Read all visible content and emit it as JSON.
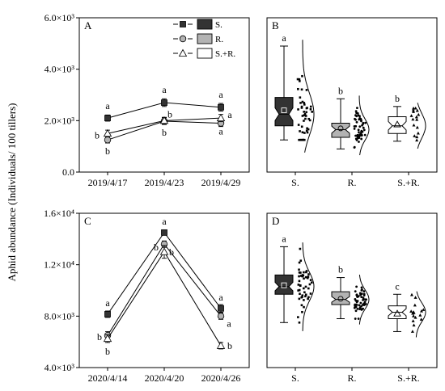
{
  "figure": {
    "ylabel": "Aphid abundance (Individuals/ 100 tillers)"
  },
  "chart_data": [
    {
      "panel": "A",
      "type": "line",
      "categories": [
        "2019/4/17",
        "2019/4/23",
        "2019/4/29"
      ],
      "ylim": [
        0,
        6000
      ],
      "yticks": [
        {
          "value": 0,
          "label": "0.0"
        },
        {
          "value": 2000,
          "label": "2.0×10³"
        },
        {
          "value": 4000,
          "label": "4.0×10³"
        },
        {
          "value": 6000,
          "label": "6.0×10³"
        }
      ],
      "legend": {
        "placement": "top-right"
      },
      "series": [
        {
          "name": "S.",
          "marker": "square",
          "fill": "#333333",
          "values": [
            2100,
            2700,
            2520
          ],
          "errors": [
            120,
            150,
            150
          ],
          "letters": [
            "a",
            "a",
            "a"
          ]
        },
        {
          "name": "R.",
          "marker": "circle",
          "fill": "#b3b3b3",
          "values": [
            1250,
            1980,
            1900
          ],
          "errors": [
            120,
            130,
            130
          ],
          "letters": [
            "b",
            "b",
            "a"
          ]
        },
        {
          "name": "S.+R.",
          "marker": "triangle",
          "fill": "#ffffff",
          "values": [
            1500,
            2000,
            2100
          ],
          "errors": [
            130,
            130,
            140
          ],
          "letters": [
            "b",
            "b",
            "a"
          ]
        }
      ]
    },
    {
      "panel": "B",
      "type": "box",
      "categories": [
        "S.",
        "R.",
        "S.+R."
      ],
      "ylim": [
        0,
        6000
      ],
      "boxes": [
        {
          "name": "S.",
          "fill": "#333333",
          "min": 1250,
          "q1": 1800,
          "median": 2250,
          "q3": 2900,
          "max": 4900,
          "mean": 2400,
          "letter": "a"
        },
        {
          "name": "R.",
          "fill": "#b3b3b3",
          "min": 900,
          "q1": 1350,
          "median": 1650,
          "q3": 1900,
          "max": 2850,
          "mean": 1700,
          "letter": "b"
        },
        {
          "name": "S.+R.",
          "fill": "#ffffff",
          "min": 1200,
          "q1": 1500,
          "median": 1800,
          "q3": 2150,
          "max": 2550,
          "mean": 1850,
          "letter": "b"
        }
      ]
    },
    {
      "panel": "C",
      "type": "line",
      "categories": [
        "2020/4/14",
        "2020/4/20",
        "2020/4/26"
      ],
      "ylim": [
        4000,
        16000
      ],
      "yticks": [
        {
          "value": 4000,
          "label": "4.0×10³"
        },
        {
          "value": 8000,
          "label": "8.0×10³"
        },
        {
          "value": 12000,
          "label": "1.2×10⁴"
        },
        {
          "value": 16000,
          "label": "1.6×10⁴"
        }
      ],
      "series": [
        {
          "name": "S.",
          "marker": "square",
          "fill": "#333333",
          "values": [
            8150,
            14500,
            8600
          ],
          "errors": [
            250,
            200,
            300
          ],
          "letters": [
            "a",
            "a",
            "a"
          ]
        },
        {
          "name": "R.",
          "marker": "circle",
          "fill": "#b3b3b3",
          "values": [
            6500,
            13600,
            8000
          ],
          "errors": [
            300,
            250,
            250
          ],
          "letters": [
            "b",
            "b",
            "a"
          ]
        },
        {
          "name": "S.+R.",
          "marker": "triangle",
          "fill": "#ffffff",
          "values": [
            6250,
            13000,
            5700
          ],
          "errors": [
            300,
            500,
            250
          ],
          "letters": [
            "b",
            "b",
            "b"
          ]
        }
      ]
    },
    {
      "panel": "D",
      "type": "box",
      "categories": [
        "S.",
        "R.",
        "S.+R."
      ],
      "ylim": [
        4000,
        16000
      ],
      "boxes": [
        {
          "name": "S.",
          "fill": "#333333",
          "min": 7500,
          "q1": 9700,
          "median": 10300,
          "q3": 11200,
          "max": 13400,
          "mean": 10400,
          "letter": "a"
        },
        {
          "name": "R.",
          "fill": "#b3b3b3",
          "min": 7800,
          "q1": 8900,
          "median": 9300,
          "q3": 9900,
          "max": 11000,
          "mean": 9350,
          "letter": "b"
        },
        {
          "name": "S.+R.",
          "fill": "#ffffff",
          "min": 6800,
          "q1": 7800,
          "median": 8300,
          "q3": 8800,
          "max": 9700,
          "mean": 8200,
          "letter": "c"
        }
      ]
    }
  ]
}
